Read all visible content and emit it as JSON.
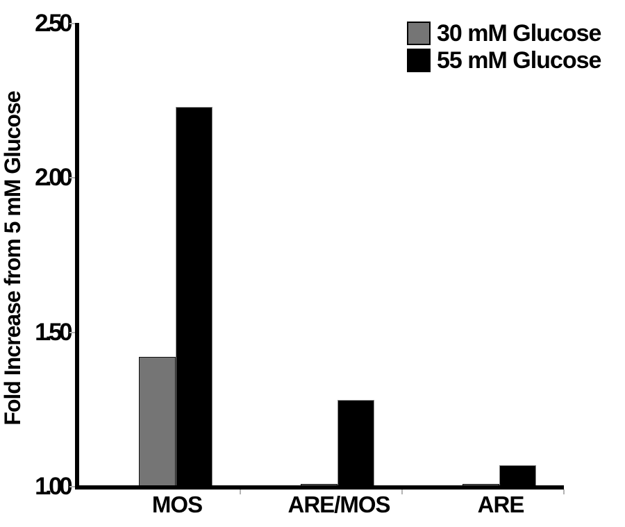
{
  "chart_data": {
    "type": "bar",
    "title": "",
    "xlabel": "",
    "ylabel": "Fold Increase from 5 mM Glucose",
    "categories": [
      "MOS",
      "ARE/MOS",
      "ARE"
    ],
    "series": [
      {
        "name": "30 mM Glucose",
        "color": "#757575",
        "values": [
          1.42,
          1.01,
          1.01
        ]
      },
      {
        "name": "55 mM Glucose",
        "color": "#000000",
        "values": [
          2.23,
          1.28,
          1.07
        ]
      }
    ],
    "ylim": [
      1.0,
      2.5
    ],
    "yticks": [
      1.0,
      1.5,
      2.0,
      2.5
    ],
    "ytick_labels": [
      "1.00",
      "1.50",
      "2.00",
      "2.50"
    ],
    "grid": false,
    "legend_position": "top-right",
    "bar_outline_color": "#000000",
    "axis_color": "#000000",
    "tick_mark_color": "#b3b3b3"
  }
}
